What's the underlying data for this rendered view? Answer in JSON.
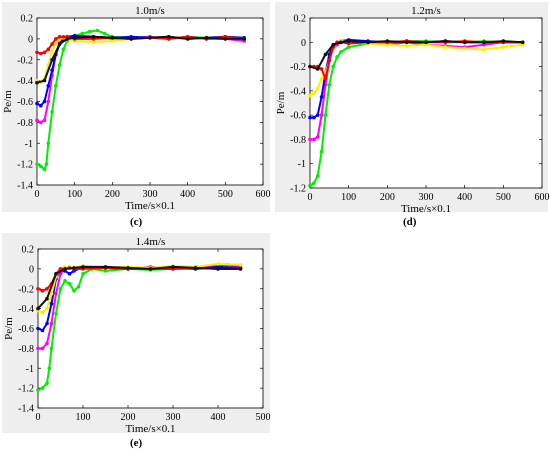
{
  "chart_data": [
    {
      "type": "line",
      "title": "1.0m/s",
      "xlabel": "Time/s×0.1",
      "ylabel": "Pe/m",
      "xlim": [
        0,
        600
      ],
      "ylim": [
        -1.4,
        0.2
      ],
      "xticks": [
        0,
        100,
        200,
        300,
        400,
        500,
        600
      ],
      "yticks": [
        0.2,
        0,
        -0.2,
        -0.4,
        -0.6,
        -0.8,
        -1,
        -1.2,
        -1.4
      ],
      "grid": false,
      "caption": "(c)",
      "series": [
        {
          "color": "#00ee00",
          "marker": "*",
          "x": [
            0,
            10,
            20,
            25,
            30,
            40,
            50,
            60,
            70,
            80,
            100,
            120,
            140,
            160,
            180,
            200,
            250,
            300,
            350,
            400,
            450,
            500,
            550
          ],
          "y": [
            -1.2,
            -1.22,
            -1.25,
            -1.2,
            -1.0,
            -0.7,
            -0.45,
            -0.25,
            -0.1,
            -0.02,
            0.03,
            0.05,
            0.07,
            0.08,
            0.05,
            0.02,
            0.01,
            0.02,
            0.0,
            0.02,
            0.01,
            0.02,
            0.01
          ]
        },
        {
          "color": "#ff00ff",
          "marker": "*",
          "x": [
            0,
            10,
            20,
            30,
            40,
            50,
            60,
            70,
            80,
            100,
            150,
            200,
            250,
            300,
            350,
            400,
            450,
            500,
            550
          ],
          "y": [
            -0.78,
            -0.8,
            -0.78,
            -0.6,
            -0.35,
            -0.15,
            -0.04,
            0.0,
            0.01,
            0.02,
            0.02,
            0.0,
            0.01,
            0.02,
            0.0,
            0.02,
            0.0,
            0.0,
            -0.02
          ]
        },
        {
          "color": "#0000ff",
          "marker": "*",
          "x": [
            0,
            10,
            20,
            30,
            40,
            50,
            60,
            70,
            80,
            100,
            150,
            200,
            250,
            300,
            350,
            400,
            450,
            500,
            550
          ],
          "y": [
            -0.62,
            -0.64,
            -0.6,
            -0.45,
            -0.3,
            -0.15,
            -0.05,
            0.0,
            0.02,
            0.03,
            0.02,
            0.01,
            0.02,
            0.01,
            0.02,
            0.0,
            0.01,
            0.02,
            0.01
          ]
        },
        {
          "color": "#ffee00",
          "marker": "*",
          "x": [
            0,
            10,
            20,
            30,
            40,
            50,
            60,
            70,
            80,
            100,
            150,
            200,
            250,
            300,
            350,
            400,
            450,
            500,
            550
          ],
          "y": [
            -0.4,
            -0.42,
            -0.38,
            -0.25,
            -0.12,
            -0.04,
            0.0,
            0.01,
            0.0,
            -0.02,
            -0.03,
            -0.02,
            0.0,
            0.01,
            0.0,
            0.0,
            0.01,
            0.0,
            0.0
          ]
        },
        {
          "color": "#ff0000",
          "marker": "*",
          "x": [
            0,
            10,
            20,
            30,
            40,
            50,
            60,
            70,
            80,
            100,
            150,
            200,
            250,
            300,
            350,
            400,
            450,
            500,
            550
          ],
          "y": [
            -0.13,
            -0.14,
            -0.13,
            -0.1,
            -0.05,
            0.0,
            0.02,
            0.02,
            0.02,
            0.0,
            0.0,
            0.01,
            0.0,
            0.01,
            0.0,
            0.02,
            0.0,
            0.02,
            0.0
          ]
        },
        {
          "color": "#111111",
          "marker": "*",
          "x": [
            0,
            20,
            40,
            60,
            80,
            100,
            150,
            200,
            250,
            300,
            350,
            400,
            450,
            500,
            550
          ],
          "y": [
            -0.42,
            -0.4,
            -0.2,
            -0.05,
            0.0,
            0.01,
            0.02,
            0.01,
            0.0,
            0.01,
            0.02,
            0.0,
            0.01,
            0.0,
            0.0
          ]
        }
      ]
    },
    {
      "type": "line",
      "title": "1.2m/s",
      "xlabel": "Time/s×0.1",
      "ylabel": "Pe/m",
      "xlim": [
        0,
        600
      ],
      "ylim": [
        -1.2,
        0.2
      ],
      "xticks": [
        0,
        100,
        200,
        300,
        400,
        500,
        600
      ],
      "yticks": [
        0.2,
        0,
        -0.2,
        -0.4,
        -0.6,
        -0.8,
        -1,
        -1.2
      ],
      "grid": false,
      "caption": "(d)",
      "series": [
        {
          "color": "#00ee00",
          "marker": "*",
          "x": [
            0,
            10,
            20,
            30,
            40,
            50,
            60,
            70,
            80,
            100,
            150,
            200,
            250,
            300,
            350,
            400,
            450,
            500,
            550
          ],
          "y": [
            -1.18,
            -1.16,
            -1.1,
            -0.9,
            -0.6,
            -0.35,
            -0.2,
            -0.12,
            -0.08,
            -0.04,
            -0.01,
            0.0,
            0.01,
            0.01,
            0.0,
            0.0,
            0.01,
            0.0,
            0.0
          ]
        },
        {
          "color": "#ff00ff",
          "marker": "*",
          "x": [
            0,
            10,
            20,
            30,
            40,
            50,
            60,
            70,
            80,
            100,
            150,
            200,
            250,
            300,
            350,
            400,
            450,
            500,
            550
          ],
          "y": [
            -0.8,
            -0.8,
            -0.78,
            -0.6,
            -0.35,
            -0.15,
            -0.05,
            -0.02,
            0.0,
            0.01,
            0.0,
            -0.02,
            0.0,
            -0.02,
            -0.03,
            -0.04,
            -0.02,
            0.0,
            0.0
          ]
        },
        {
          "color": "#0000ff",
          "marker": "*",
          "x": [
            0,
            10,
            20,
            30,
            40,
            50,
            60,
            70,
            80,
            100,
            150,
            200,
            250,
            300,
            350,
            400,
            450,
            500,
            550
          ],
          "y": [
            -0.62,
            -0.62,
            -0.6,
            -0.45,
            -0.25,
            -0.1,
            -0.03,
            0.0,
            0.01,
            0.02,
            0.01,
            0.0,
            0.01,
            0.0,
            0.01,
            0.0,
            0.0,
            0.0,
            0.0
          ]
        },
        {
          "color": "#ffee00",
          "marker": "*",
          "x": [
            0,
            10,
            20,
            30,
            40,
            50,
            60,
            70,
            80,
            100,
            150,
            200,
            250,
            300,
            350,
            400,
            450,
            500,
            550
          ],
          "y": [
            -0.44,
            -0.42,
            -0.38,
            -0.3,
            -0.25,
            -0.15,
            -0.05,
            0.0,
            0.01,
            0.0,
            -0.01,
            -0.02,
            -0.03,
            -0.02,
            -0.04,
            -0.05,
            -0.06,
            -0.04,
            -0.02
          ]
        },
        {
          "color": "#ff0000",
          "marker": "*",
          "x": [
            0,
            10,
            20,
            30,
            40,
            50,
            60,
            70,
            80,
            100,
            150,
            200,
            250,
            300,
            350,
            400,
            450,
            500,
            550
          ],
          "y": [
            -0.2,
            -0.2,
            -0.2,
            -0.22,
            -0.3,
            -0.15,
            -0.04,
            0.0,
            0.0,
            -0.01,
            0.0,
            0.0,
            0.01,
            0.0,
            0.0,
            0.01,
            0.0,
            0.0,
            0.0
          ]
        },
        {
          "color": "#111111",
          "marker": "*",
          "x": [
            0,
            20,
            40,
            60,
            80,
            100,
            150,
            200,
            250,
            300,
            350,
            400,
            450,
            500,
            550
          ],
          "y": [
            -0.2,
            -0.22,
            -0.1,
            -0.02,
            0.0,
            0.01,
            0.0,
            0.01,
            0.0,
            0.0,
            0.01,
            0.0,
            0.0,
            0.01,
            0.0
          ]
        }
      ]
    },
    {
      "type": "line",
      "title": "1.4m/s",
      "xlabel": "Time/s×0.1",
      "ylabel": "Pe/m",
      "xlim": [
        0,
        500
      ],
      "ylim": [
        -1.4,
        0.2
      ],
      "xticks": [
        0,
        100,
        200,
        300,
        400,
        500
      ],
      "yticks": [
        0.2,
        0,
        -0.2,
        -0.4,
        -0.6,
        -0.8,
        -1,
        -1.2,
        -1.4
      ],
      "grid": false,
      "caption": "(e)",
      "series": [
        {
          "color": "#00ee00",
          "marker": "*",
          "x": [
            0,
            10,
            20,
            25,
            30,
            40,
            50,
            60,
            70,
            80,
            90,
            100,
            120,
            150,
            200,
            250,
            300,
            350,
            400,
            450
          ],
          "y": [
            -1.22,
            -1.2,
            -1.15,
            -1.0,
            -0.8,
            -0.45,
            -0.2,
            -0.12,
            -0.15,
            -0.22,
            -0.18,
            -0.05,
            0.0,
            -0.02,
            0.0,
            -0.01,
            0.0,
            0.0,
            0.01,
            0.0
          ]
        },
        {
          "color": "#ff00ff",
          "marker": "*",
          "x": [
            0,
            10,
            20,
            30,
            40,
            50,
            60,
            70,
            80,
            100,
            150,
            200,
            250,
            300,
            350,
            400,
            420,
            450
          ],
          "y": [
            -0.8,
            -0.8,
            -0.75,
            -0.55,
            -0.25,
            -0.05,
            0.0,
            0.01,
            0.0,
            0.02,
            0.01,
            0.0,
            0.02,
            0.0,
            0.02,
            0.03,
            0.04,
            0.02
          ]
        },
        {
          "color": "#0000ff",
          "marker": "*",
          "x": [
            0,
            10,
            20,
            30,
            40,
            50,
            60,
            70,
            80,
            100,
            150,
            200,
            250,
            300,
            350,
            400,
            450
          ],
          "y": [
            -0.6,
            -0.62,
            -0.55,
            -0.35,
            -0.1,
            0.0,
            -0.02,
            -0.05,
            -0.02,
            0.02,
            0.01,
            0.0,
            0.01,
            0.02,
            0.0,
            0.02,
            0.01
          ]
        },
        {
          "color": "#ffee00",
          "marker": "*",
          "x": [
            0,
            10,
            20,
            30,
            40,
            50,
            60,
            70,
            80,
            100,
            150,
            200,
            250,
            300,
            350,
            400,
            450
          ],
          "y": [
            -0.42,
            -0.44,
            -0.4,
            -0.25,
            -0.08,
            0.0,
            0.02,
            0.02,
            0.01,
            0.03,
            0.01,
            0.02,
            0.01,
            0.03,
            0.02,
            0.05,
            0.04
          ]
        },
        {
          "color": "#ff0000",
          "marker": "*",
          "x": [
            0,
            10,
            20,
            30,
            40,
            50,
            60,
            70,
            80,
            100,
            150,
            200,
            250,
            300,
            350,
            400,
            450
          ],
          "y": [
            -0.2,
            -0.22,
            -0.2,
            -0.15,
            -0.05,
            0.0,
            0.0,
            0.01,
            0.0,
            0.0,
            0.01,
            0.0,
            0.0,
            0.0,
            0.01,
            0.0,
            0.0
          ]
        },
        {
          "color": "#111111",
          "marker": "*",
          "x": [
            0,
            20,
            40,
            60,
            80,
            100,
            150,
            200,
            250,
            300,
            350,
            400,
            450
          ],
          "y": [
            -0.4,
            -0.3,
            -0.05,
            0.0,
            0.01,
            0.02,
            0.02,
            0.01,
            0.0,
            0.02,
            0.01,
            0.0,
            0.0
          ]
        }
      ]
    }
  ]
}
